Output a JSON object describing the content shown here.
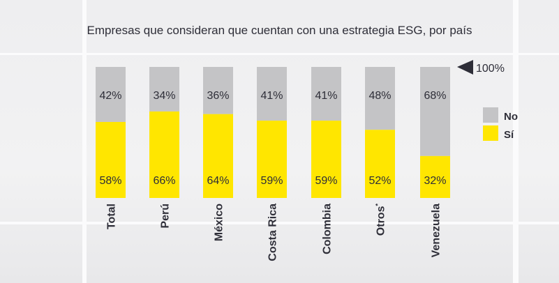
{
  "chart_data": {
    "type": "bar",
    "stacked": true,
    "title": "Empresas que consideran que cuentan con una estrategia ESG, por país",
    "categories": [
      "Total",
      "Perú",
      "México",
      "Costa Rica",
      "Colombia",
      "Otros",
      "Venezuela"
    ],
    "category_superscripts": {
      "Otros": "*"
    },
    "series": [
      {
        "name": "Sí",
        "color": "#ffe600",
        "values": [
          58,
          66,
          64,
          59,
          59,
          52,
          32
        ]
      },
      {
        "name": "No",
        "color": "#c4c4c6",
        "values": [
          42,
          34,
          36,
          41,
          41,
          48,
          68
        ]
      }
    ],
    "value_suffix": "%",
    "ylim": [
      0,
      100
    ],
    "max_marker_label": "100%",
    "legend": {
      "placement": "right",
      "items": [
        "No",
        "Sí"
      ]
    },
    "grid": false
  }
}
